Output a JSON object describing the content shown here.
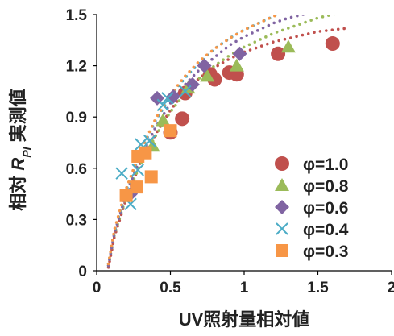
{
  "chart_data": {
    "type": "scatter",
    "xlabel": "UV照射量相対値",
    "ylabel_prefix": "相対 ",
    "ylabel_var": "R",
    "ylabel_sub": "PI",
    "ylabel_suffix": " 実測値",
    "xlim": [
      0,
      2
    ],
    "ylim": [
      0,
      1.5
    ],
    "x_ticks": [
      0,
      0.5,
      1,
      1.5,
      2
    ],
    "y_ticks": [
      0,
      0.3,
      0.6,
      0.9,
      1.2,
      1.5
    ],
    "x_tick_labels": [
      "0",
      "0.5",
      "1",
      "1.5",
      "2"
    ],
    "y_tick_labels": [
      "0",
      "0.3",
      "0.6",
      "0.9",
      "1.2",
      "1.5"
    ],
    "grid": false,
    "legend_position": "bottom-right",
    "series": [
      {
        "name": "φ=1.0",
        "marker": "circle",
        "color": "#C0504D",
        "points": [
          [
            0.5,
            0.81
          ],
          [
            0.58,
            0.89
          ],
          [
            0.6,
            1.04
          ],
          [
            0.77,
            1.15
          ],
          [
            0.8,
            1.12
          ],
          [
            0.9,
            1.16
          ],
          [
            0.95,
            1.15
          ],
          [
            1.23,
            1.27
          ],
          [
            1.6,
            1.33
          ]
        ],
        "trend": [
          [
            0.08,
            0.02
          ],
          [
            0.12,
            0.2
          ],
          [
            0.2,
            0.42
          ],
          [
            0.3,
            0.64
          ],
          [
            0.4,
            0.8
          ],
          [
            0.5,
            0.94
          ],
          [
            0.6,
            1.05
          ],
          [
            0.7,
            1.13
          ],
          [
            0.8,
            1.19
          ],
          [
            0.9,
            1.24
          ],
          [
            1.0,
            1.28
          ],
          [
            1.1,
            1.31
          ],
          [
            1.2,
            1.34
          ],
          [
            1.3,
            1.36
          ],
          [
            1.4,
            1.38
          ],
          [
            1.5,
            1.4
          ],
          [
            1.6,
            1.41
          ],
          [
            1.7,
            1.42
          ]
        ]
      },
      {
        "name": "φ=0.8",
        "marker": "triangle",
        "color": "#9BBB59",
        "points": [
          [
            0.38,
            0.73
          ],
          [
            0.45,
            0.88
          ],
          [
            0.62,
            1.07
          ],
          [
            0.75,
            1.14
          ],
          [
            0.95,
            1.2
          ],
          [
            1.3,
            1.31
          ]
        ],
        "trend": [
          [
            0.08,
            0.03
          ],
          [
            0.12,
            0.21
          ],
          [
            0.2,
            0.43
          ],
          [
            0.3,
            0.63
          ],
          [
            0.4,
            0.79
          ],
          [
            0.5,
            0.93
          ],
          [
            0.6,
            1.04
          ],
          [
            0.7,
            1.13
          ],
          [
            0.8,
            1.2
          ],
          [
            0.9,
            1.26
          ],
          [
            1.0,
            1.31
          ],
          [
            1.1,
            1.35
          ],
          [
            1.2,
            1.39
          ],
          [
            1.3,
            1.42
          ],
          [
            1.4,
            1.45
          ],
          [
            1.5,
            1.48
          ],
          [
            1.6,
            1.5
          ],
          [
            1.68,
            1.52
          ]
        ]
      },
      {
        "name": "φ=0.6",
        "marker": "diamond",
        "color": "#8064A2",
        "points": [
          [
            0.23,
            0.45
          ],
          [
            0.3,
            0.68
          ],
          [
            0.41,
            1.01
          ],
          [
            0.52,
            1.02
          ],
          [
            0.65,
            1.09
          ],
          [
            0.73,
            1.2
          ],
          [
            0.97,
            1.27
          ]
        ],
        "trend": [
          [
            0.08,
            0.03
          ],
          [
            0.12,
            0.22
          ],
          [
            0.2,
            0.45
          ],
          [
            0.3,
            0.67
          ],
          [
            0.4,
            0.84
          ],
          [
            0.5,
            0.98
          ],
          [
            0.6,
            1.09
          ],
          [
            0.7,
            1.18
          ],
          [
            0.8,
            1.25
          ],
          [
            0.9,
            1.32
          ],
          [
            1.0,
            1.37
          ],
          [
            1.1,
            1.41
          ],
          [
            1.2,
            1.45
          ],
          [
            1.3,
            1.48
          ],
          [
            1.4,
            1.5
          ],
          [
            1.48,
            1.52
          ]
        ]
      },
      {
        "name": "φ=0.4",
        "marker": "x",
        "color": "#4BACC6",
        "points": [
          [
            0.17,
            0.57
          ],
          [
            0.23,
            0.39
          ],
          [
            0.28,
            0.59
          ],
          [
            0.3,
            0.74
          ],
          [
            0.36,
            0.76
          ],
          [
            0.45,
            0.97
          ],
          [
            0.48,
            1.01
          ],
          [
            0.6,
            1.05
          ]
        ],
        "trend": [
          [
            0.08,
            0.04
          ],
          [
            0.12,
            0.23
          ],
          [
            0.2,
            0.47
          ],
          [
            0.3,
            0.7
          ],
          [
            0.4,
            0.88
          ],
          [
            0.5,
            1.02
          ],
          [
            0.6,
            1.13
          ],
          [
            0.7,
            1.22
          ],
          [
            0.8,
            1.3
          ],
          [
            0.9,
            1.36
          ],
          [
            1.0,
            1.41
          ],
          [
            1.1,
            1.45
          ],
          [
            1.2,
            1.49
          ],
          [
            1.28,
            1.52
          ]
        ]
      },
      {
        "name": "φ=0.3",
        "marker": "square",
        "color": "#F79646",
        "points": [
          [
            0.2,
            0.44
          ],
          [
            0.27,
            0.49
          ],
          [
            0.28,
            0.67
          ],
          [
            0.33,
            0.69
          ],
          [
            0.37,
            0.55
          ],
          [
            0.5,
            0.82
          ]
        ],
        "trend": [
          [
            0.08,
            0.04
          ],
          [
            0.12,
            0.24
          ],
          [
            0.2,
            0.48
          ],
          [
            0.3,
            0.71
          ],
          [
            0.4,
            0.89
          ],
          [
            0.5,
            1.03
          ],
          [
            0.6,
            1.14
          ],
          [
            0.7,
            1.23
          ],
          [
            0.8,
            1.3
          ],
          [
            0.9,
            1.36
          ],
          [
            1.0,
            1.41
          ],
          [
            1.1,
            1.45
          ],
          [
            1.2,
            1.49
          ],
          [
            1.26,
            1.51
          ]
        ]
      }
    ]
  }
}
